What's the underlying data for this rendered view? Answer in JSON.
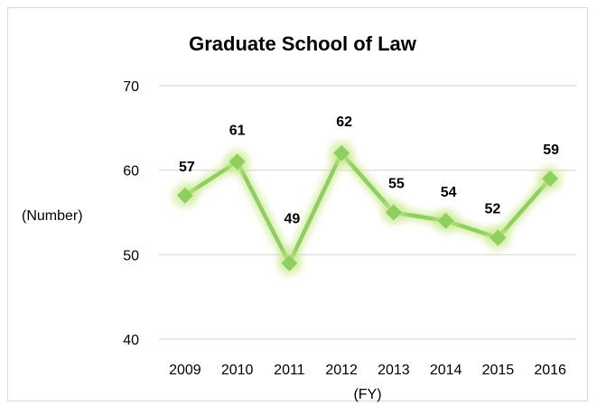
{
  "chart_data": {
    "type": "line",
    "title": "Graduate School of Law",
    "xlabel": "(FY)",
    "ylabel": "(Number)",
    "categories": [
      "2009",
      "2010",
      "2011",
      "2012",
      "2013",
      "2014",
      "2015",
      "2016"
    ],
    "series": [
      {
        "values": [
          57,
          61,
          49,
          62,
          55,
          54,
          52,
          59
        ]
      }
    ],
    "ylim": [
      40,
      70
    ],
    "yticks": [
      40,
      50,
      60,
      70
    ],
    "grid": true,
    "line_color": "#8fcf5f",
    "marker": "diamond",
    "marker_color": "#8fcf5f",
    "glow_color": "#c9e88a"
  }
}
